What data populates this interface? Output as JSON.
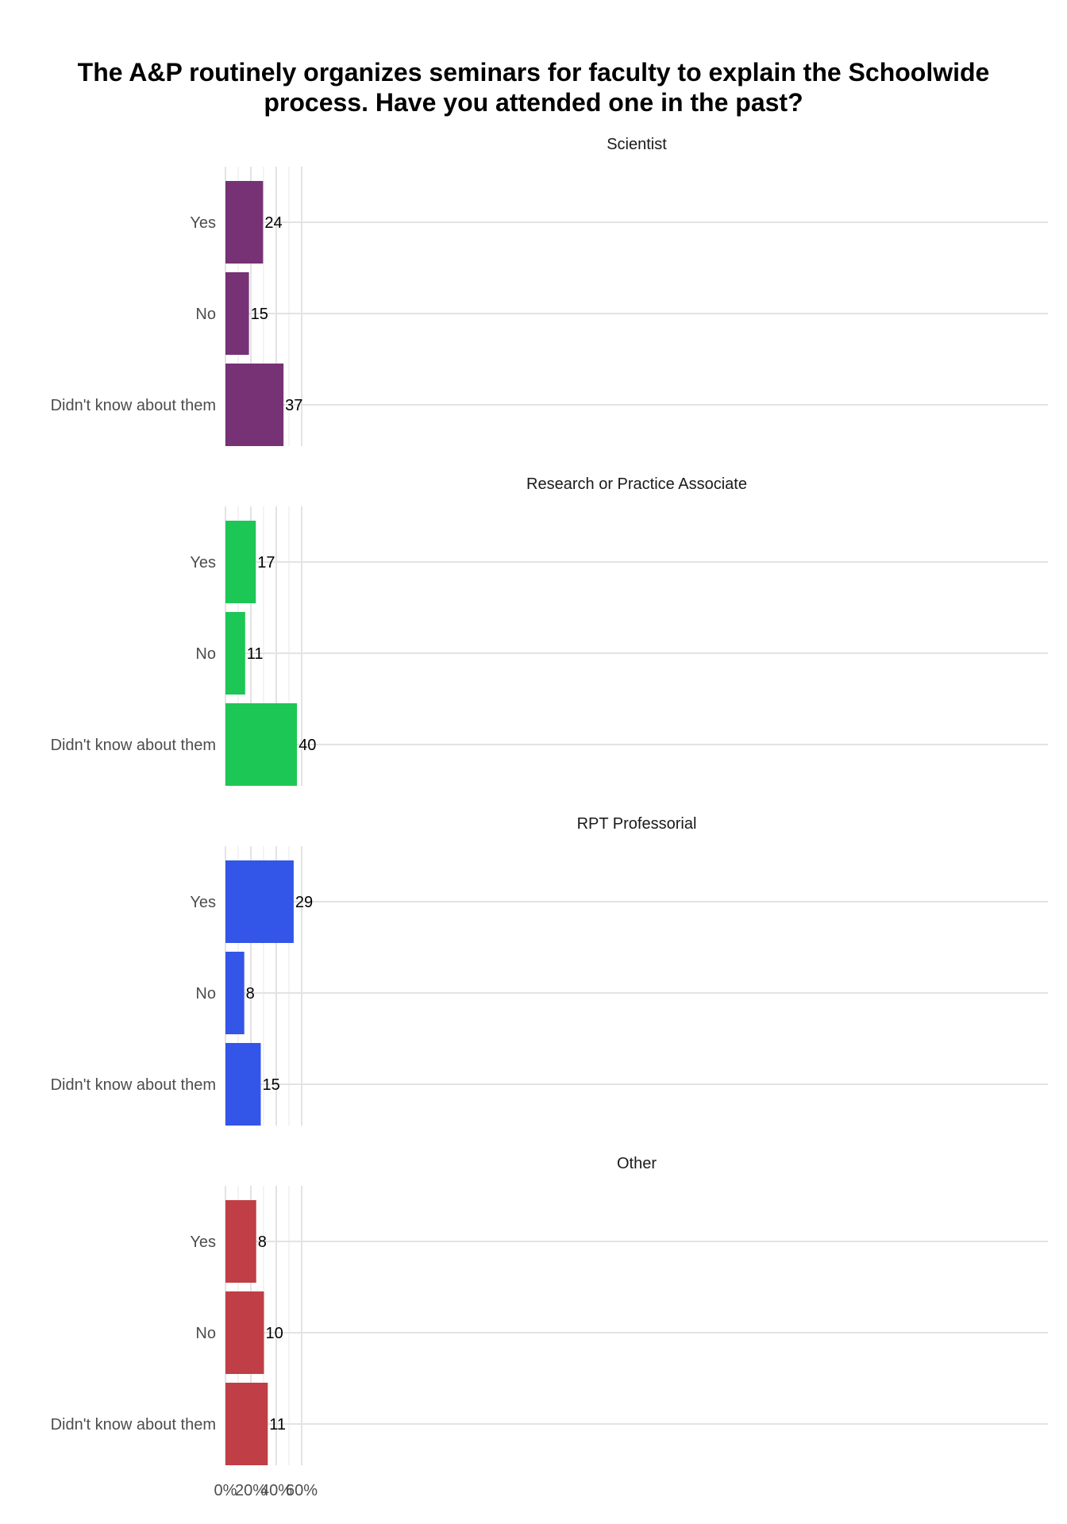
{
  "chart_data": {
    "type": "bar",
    "orientation": "horizontal",
    "title": "The A&P routinely organizes seminars for faculty to explain the Schoolwide process. Have you attended one in the past?",
    "title_lines": [
      "The A&P routinely organizes seminars for faculty to explain the Schoolwide",
      "process. Have you attended one in the past?"
    ],
    "categories": [
      "Yes",
      "No",
      "Didn't know about them"
    ],
    "x_ticks": [
      0,
      20,
      40,
      60
    ],
    "x_tick_labels": [
      "0%",
      "20%",
      "40%",
      "60%"
    ],
    "xlim": [
      0,
      65
    ],
    "grid": true,
    "facets": [
      {
        "name": "Scientist",
        "color": "#773175",
        "percents": [
          29.6,
          18.5,
          45.7
        ],
        "counts": [
          24,
          15,
          37
        ]
      },
      {
        "name": "Research or Practice Associate",
        "color": "#1dc755",
        "percents": [
          23.9,
          15.5,
          56.3
        ],
        "counts": [
          17,
          11,
          40
        ]
      },
      {
        "name": "RPT Professorial",
        "color": "#3355e8",
        "percents": [
          53.7,
          14.8,
          27.8
        ],
        "counts": [
          29,
          8,
          15
        ]
      },
      {
        "name": "Other",
        "color": "#c03e45",
        "percents": [
          24.2,
          30.3,
          33.3
        ],
        "counts": [
          8,
          10,
          11
        ]
      }
    ]
  }
}
